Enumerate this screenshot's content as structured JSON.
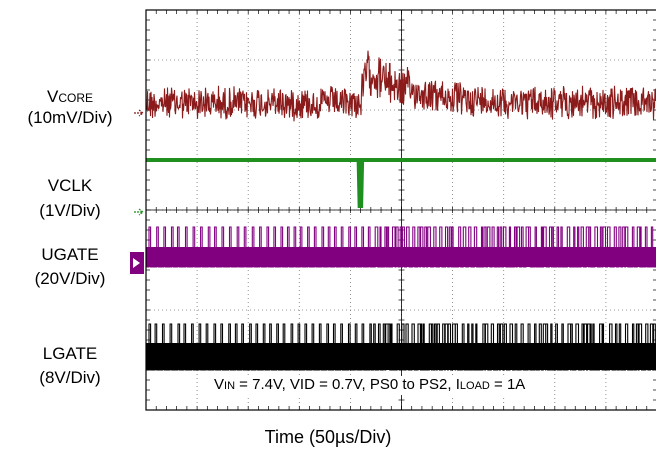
{
  "chart_data": {
    "type": "line",
    "title": "",
    "xlabel": "Time (50µs/Div)",
    "x_divisions": 10,
    "y_divisions": 8,
    "grid": "dotted",
    "annotation": {
      "parts": [
        {
          "text": "V",
          "sub": "IN"
        },
        {
          "text": " = 7.4V, VID = 0.7V, PS0 to PS2, I",
          "sub": "LOAD"
        },
        {
          "text": " = 1A",
          "sub": ""
        }
      ]
    },
    "channels": [
      {
        "name": "VCORE",
        "name_main": "V",
        "name_sub": "CORE",
        "scale": "(10mV/Div)",
        "color": "#8b1a1a",
        "waveform": "noisy band; steps up ~1.5 div at 4.2 div, decays back by 6 div"
      },
      {
        "name": "VCLK",
        "scale": "(1V/Div)",
        "color": "#1f8f1f",
        "waveform": "high level with single low pulse at 4.2 div"
      },
      {
        "name": "UGATE",
        "scale": "(20V/Div)",
        "color": "#800080",
        "waveform": "switching pulses, denser after 4.2 div"
      },
      {
        "name": "LGATE",
        "scale": "(8V/Div)",
        "color": "#000000",
        "waveform": "switching pulses, denser after 4.2 div"
      }
    ]
  }
}
